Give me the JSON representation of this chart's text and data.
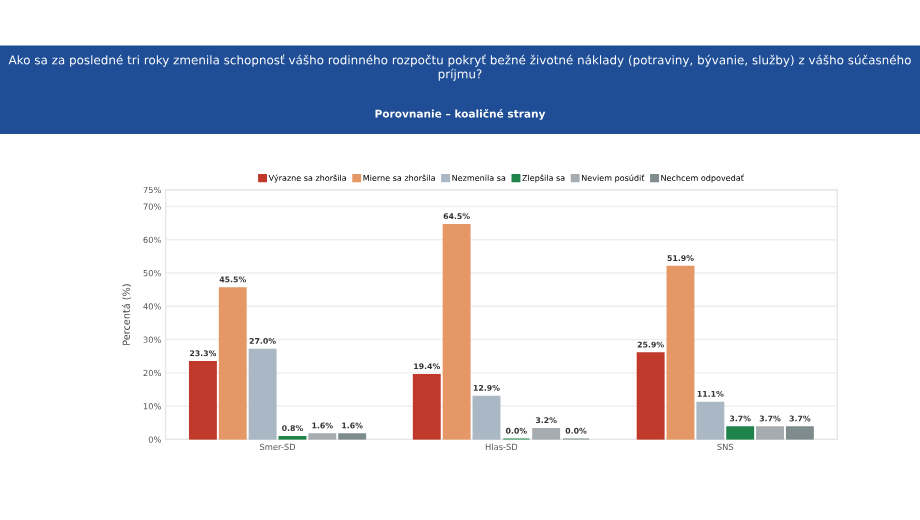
{
  "chart_data": {
    "type": "bar",
    "title": "Ako sa za posledné tri roky zmenila schopnosť vášho rodinného rozpočtu pokryť bežné životné náklady (potraviny, bývanie, služby) z vášho súčasného príjmu?",
    "subtitle": "Porovnanie – koaličné strany",
    "ylabel": "Percentá (%)",
    "categories": [
      "Smer-SD",
      "Hlas-SD",
      "SNS"
    ],
    "series": [
      {
        "name": "Výrazne sa zhoršila",
        "color": "#c0392b",
        "values": [
          23.3,
          19.4,
          25.9
        ],
        "value_labels": [
          "23.3%",
          "19.4%",
          "25.9%"
        ]
      },
      {
        "name": "Mierne sa zhoršila",
        "color": "#e59866",
        "values": [
          45.5,
          64.5,
          51.9
        ],
        "value_labels": [
          "45.5%",
          "64.5%",
          "51.9%"
        ]
      },
      {
        "name": "Nezmenila sa",
        "color": "#aab7c4",
        "values": [
          27.0,
          12.9,
          11.1
        ],
        "value_labels": [
          "27.0%",
          "12.9%",
          "11.1%"
        ]
      },
      {
        "name": "Zlepšila sa",
        "color": "#1e8449",
        "values": [
          0.8,
          0.0,
          3.7
        ],
        "value_labels": [
          "0.8%",
          "0.0%",
          "3.7%"
        ]
      },
      {
        "name": "Neviem posúdiť",
        "color": "#a6acaf",
        "values": [
          1.6,
          3.2,
          3.7
        ],
        "value_labels": [
          "1.6%",
          "3.2%",
          "3.7%"
        ]
      },
      {
        "name": "Nechcem odpovedať",
        "color": "#7f8c8d",
        "values": [
          1.6,
          0.0,
          3.7
        ],
        "value_labels": [
          "1.6%",
          "0.0%",
          "3.7%"
        ]
      }
    ],
    "ylim": [
      0,
      75
    ],
    "yticks": [
      {
        "value": 0,
        "label": "0%"
      },
      {
        "value": 10,
        "label": "10%"
      },
      {
        "value": 20,
        "label": "20%"
      },
      {
        "value": 30,
        "label": "30%"
      },
      {
        "value": 40,
        "label": "40%"
      },
      {
        "value": 50,
        "label": "50%"
      },
      {
        "value": 60,
        "label": "60%"
      },
      {
        "value": 70,
        "label": "70%"
      },
      {
        "value": 75,
        "label": "75%"
      }
    ],
    "grid": "y",
    "legend": "top"
  }
}
